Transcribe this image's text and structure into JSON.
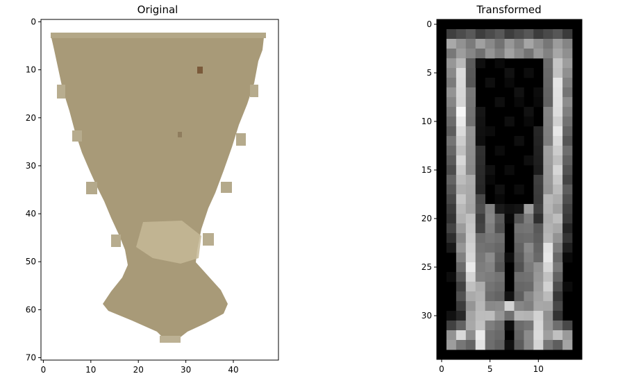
{
  "chart_data": [
    {
      "type": "heatmap",
      "title": "Original",
      "image": "sand-colored pixelated goblet/hourglass shape on white background",
      "xlim": [
        -0.5,
        49.5
      ],
      "ylim": [
        70.5,
        -0.5
      ],
      "xticks": [
        0,
        10,
        20,
        30,
        40
      ],
      "yticks": [
        0,
        10,
        20,
        30,
        40,
        50,
        60,
        70
      ],
      "xlabel": "",
      "ylabel": "",
      "colors": {
        "fill": "#a89a78",
        "fill_light": "#c8bb98",
        "spot": "#7a5a3a",
        "edge": "#cfc6ad",
        "background": "#ffffff"
      }
    },
    {
      "type": "heatmap",
      "title": "Transformed",
      "image": "grayscale edge-magnitude map of the shape (white edges on black)",
      "xlim": [
        -0.5,
        14.5
      ],
      "ylim": [
        34.5,
        -0.5
      ],
      "xticks": [
        0,
        5,
        10
      ],
      "yticks": [
        0,
        5,
        10,
        15,
        20,
        25,
        30
      ],
      "xlabel": "",
      "ylabel": "",
      "colors": {
        "background": "#000000",
        "edge_max": "#ffffff"
      }
    }
  ]
}
